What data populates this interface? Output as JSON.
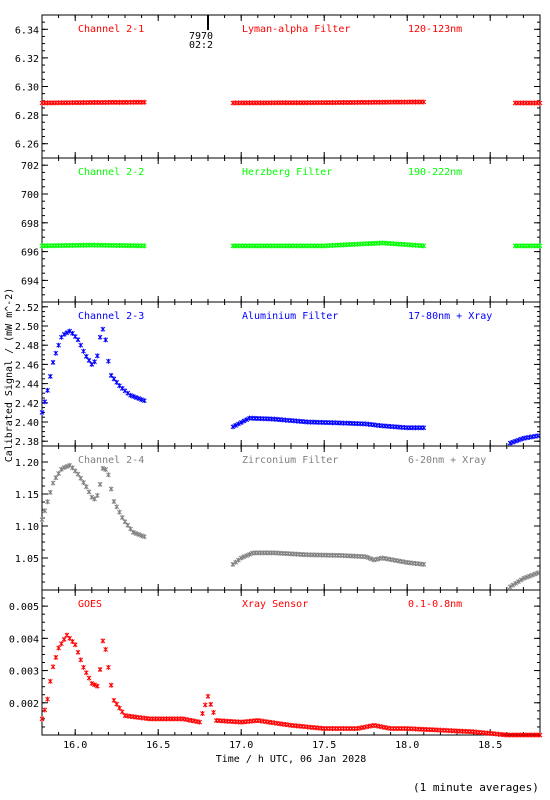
{
  "chart_data": {
    "type": "scatter",
    "xlabel": "Time / h UTC, 06 Jan 2028",
    "ylabel": "Calibrated Signal / (mW m^-2)",
    "xlim": [
      15.8,
      18.8
    ],
    "xticks": [
      "16.0",
      "16.5",
      "17.0",
      "17.5",
      "18.0",
      "18.5"
    ],
    "marker_note": {
      "line1": "7970",
      "line2": "02:2",
      "x": 16.8
    },
    "footnote": "(1 minute averages)",
    "panels": [
      {
        "name": "Channel 2-1",
        "filter": "Lyman-alpha Filter",
        "band": "120-123nm",
        "color": "#ff0000",
        "ylim": [
          6.25,
          6.35
        ],
        "yticks": [
          "6.26",
          "6.28",
          "6.30",
          "6.32",
          "6.34"
        ],
        "segments": [
          {
            "x_start": 15.8,
            "x_end": 16.42,
            "points": [
              [
                15.8,
                6.2885
              ],
              [
                16.1,
                6.2888
              ],
              [
                16.42,
                6.289
              ]
            ]
          },
          {
            "x_start": 16.95,
            "x_end": 18.1,
            "points": [
              [
                16.95,
                6.2885
              ],
              [
                17.5,
                6.2887
              ],
              [
                18.1,
                6.2892
              ]
            ]
          },
          {
            "x_start": 18.65,
            "x_end": 18.8,
            "points": [
              [
                18.65,
                6.2885
              ],
              [
                18.8,
                6.2885
              ]
            ]
          }
        ]
      },
      {
        "name": "Channel 2-2",
        "filter": "Herzberg Filter",
        "band": "190-222nm",
        "color": "#00ff00",
        "ylim": [
          692.5,
          702.5
        ],
        "yticks": [
          "694",
          "696",
          "698",
          "700",
          "702"
        ],
        "segments": [
          {
            "x_start": 15.8,
            "x_end": 16.42,
            "points": [
              [
                15.8,
                696.4
              ],
              [
                16.1,
                696.45
              ],
              [
                16.42,
                696.4
              ]
            ]
          },
          {
            "x_start": 16.95,
            "x_end": 18.1,
            "points": [
              [
                16.95,
                696.4
              ],
              [
                17.5,
                696.4
              ],
              [
                17.85,
                696.6
              ],
              [
                18.1,
                696.4
              ]
            ]
          },
          {
            "x_start": 18.65,
            "x_end": 18.8,
            "points": [
              [
                18.65,
                696.4
              ],
              [
                18.8,
                696.4
              ]
            ]
          }
        ]
      },
      {
        "name": "Channel 2-3",
        "filter": "Aluminium Filter",
        "band": "17-80nm + Xray",
        "color": "#0000ff",
        "ylim": [
          2.375,
          2.525
        ],
        "yticks": [
          "2.38",
          "2.40",
          "2.42",
          "2.44",
          "2.46",
          "2.48",
          "2.50",
          "2.52"
        ],
        "segments": [
          {
            "x_start": 15.8,
            "x_end": 16.42,
            "points": [
              [
                15.8,
                2.41
              ],
              [
                15.83,
                2.43
              ],
              [
                15.87,
                2.465
              ],
              [
                15.92,
                2.49
              ],
              [
                15.97,
                2.495
              ],
              [
                16.02,
                2.485
              ],
              [
                16.06,
                2.47
              ],
              [
                16.1,
                2.46
              ],
              [
                16.13,
                2.465
              ],
              [
                16.16,
                2.5
              ],
              [
                16.18,
                2.49
              ],
              [
                16.21,
                2.45
              ],
              [
                16.27,
                2.437
              ],
              [
                16.33,
                2.428
              ],
              [
                16.42,
                2.422
              ]
            ]
          },
          {
            "x_start": 16.95,
            "x_end": 18.1,
            "points": [
              [
                16.95,
                2.395
              ],
              [
                17.05,
                2.404
              ],
              [
                17.2,
                2.403
              ],
              [
                17.4,
                2.4
              ],
              [
                17.6,
                2.399
              ],
              [
                17.75,
                2.398
              ],
              [
                17.8,
                2.397
              ],
              [
                17.85,
                2.396
              ],
              [
                18.0,
                2.394
              ],
              [
                18.1,
                2.394
              ]
            ]
          },
          {
            "x_start": 18.62,
            "x_end": 18.8,
            "points": [
              [
                18.62,
                2.378
              ],
              [
                18.7,
                2.383
              ],
              [
                18.8,
                2.386
              ]
            ]
          }
        ]
      },
      {
        "name": "Channel 2-4",
        "filter": "Zirconium Filter",
        "band": "6-20nm + Xray",
        "color": "#808080",
        "ylim": [
          1.0,
          1.225
        ],
        "yticks": [
          "1.05",
          "1.10",
          "1.15",
          "1.20"
        ],
        "segments": [
          {
            "x_start": 15.8,
            "x_end": 16.42,
            "points": [
              [
                15.8,
                1.11
              ],
              [
                15.83,
                1.135
              ],
              [
                15.87,
                1.17
              ],
              [
                15.92,
                1.19
              ],
              [
                15.97,
                1.195
              ],
              [
                16.02,
                1.18
              ],
              [
                16.07,
                1.16
              ],
              [
                16.11,
                1.14
              ],
              [
                16.14,
                1.15
              ],
              [
                16.17,
                1.195
              ],
              [
                16.2,
                1.18
              ],
              [
                16.23,
                1.14
              ],
              [
                16.29,
                1.11
              ],
              [
                16.35,
                1.09
              ],
              [
                16.42,
                1.083
              ]
            ]
          },
          {
            "x_start": 16.95,
            "x_end": 18.1,
            "points": [
              [
                16.95,
                1.04
              ],
              [
                17.0,
                1.05
              ],
              [
                17.07,
                1.058
              ],
              [
                17.2,
                1.058
              ],
              [
                17.4,
                1.055
              ],
              [
                17.6,
                1.054
              ],
              [
                17.75,
                1.052
              ],
              [
                17.8,
                1.047
              ],
              [
                17.85,
                1.05
              ],
              [
                18.0,
                1.043
              ],
              [
                18.1,
                1.04
              ]
            ]
          },
          {
            "x_start": 18.62,
            "x_end": 18.8,
            "points": [
              [
                18.62,
                1.005
              ],
              [
                18.7,
                1.018
              ],
              [
                18.8,
                1.028
              ]
            ]
          }
        ]
      },
      {
        "name": "GOES",
        "filter": "Xray Sensor",
        "band": "0.1-0.8nm",
        "color": "#ff0000",
        "ylim": [
          0.001,
          0.0055
        ],
        "yticks": [
          "0.002",
          "0.003",
          "0.004",
          "0.005"
        ],
        "segments": [
          {
            "x_start": 15.8,
            "x_end": 18.8,
            "points": [
              [
                15.8,
                0.0015
              ],
              [
                15.83,
                0.002
              ],
              [
                15.86,
                0.003
              ],
              [
                15.9,
                0.0037
              ],
              [
                15.95,
                0.0041
              ],
              [
                16.0,
                0.0038
              ],
              [
                16.05,
                0.0031
              ],
              [
                16.1,
                0.0026
              ],
              [
                16.14,
                0.0025
              ],
              [
                16.17,
                0.0041
              ],
              [
                16.2,
                0.0031
              ],
              [
                16.23,
                0.0021
              ],
              [
                16.3,
                0.0016
              ],
              [
                16.45,
                0.0015
              ],
              [
                16.55,
                0.0015
              ],
              [
                16.65,
                0.0015
              ],
              [
                16.75,
                0.0014
              ],
              [
                16.8,
                0.0022
              ],
              [
                16.85,
                0.00145
              ],
              [
                17.0,
                0.0014
              ],
              [
                17.1,
                0.00145
              ],
              [
                17.3,
                0.0013
              ],
              [
                17.5,
                0.0012
              ],
              [
                17.7,
                0.0012
              ],
              [
                17.8,
                0.0013
              ],
              [
                17.9,
                0.0012
              ],
              [
                18.0,
                0.0012
              ],
              [
                18.2,
                0.00115
              ],
              [
                18.4,
                0.0011
              ],
              [
                18.5,
                0.00105
              ],
              [
                18.6,
                0.001
              ],
              [
                18.8,
                0.001
              ]
            ]
          }
        ]
      }
    ]
  }
}
